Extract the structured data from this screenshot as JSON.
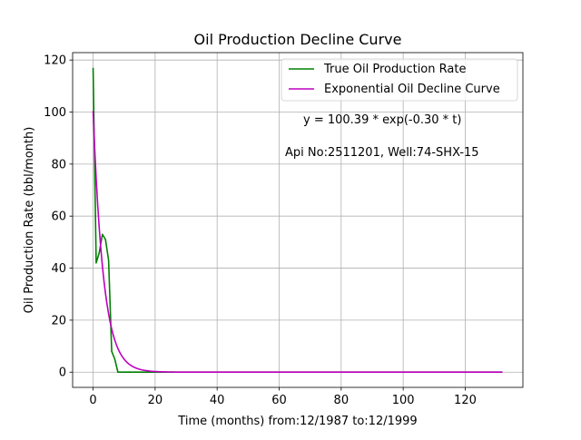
{
  "chart_data": {
    "type": "line",
    "title": "Oil Production Decline Curve",
    "xlabel": "Time (months) from:12/1987 to:12/1999",
    "ylabel": "Oil Production Rate (bbl/month)",
    "xlim": [
      -6.6,
      138.6
    ],
    "ylim": [
      -5.85,
      122.85
    ],
    "xticks": [
      0,
      20,
      40,
      60,
      80,
      100,
      120
    ],
    "yticks": [
      0,
      20,
      40,
      60,
      80,
      100,
      120
    ],
    "grid": true,
    "legend_position": "top-right",
    "annotations": [
      {
        "text": "y = 100.39 * exp(-0.30 * t)",
        "x": 69,
        "y": 95
      },
      {
        "text": "Api No:2511201, Well:74-SHX-15",
        "x": 62.5,
        "y": 82
      }
    ],
    "series": [
      {
        "name": "True Oil Production Rate",
        "color": "#008000",
        "style": "points",
        "x": [
          0,
          1,
          2,
          3,
          4,
          5,
          6,
          7,
          8,
          9,
          10,
          12,
          15,
          20,
          30,
          40,
          60,
          80,
          100,
          120,
          132
        ],
        "y": [
          117,
          42,
          46,
          53,
          51,
          43,
          8,
          5,
          0,
          0,
          0,
          0,
          0,
          0,
          0,
          0,
          0,
          0,
          0,
          0,
          0
        ]
      },
      {
        "name": "Exponential Oil Decline Curve",
        "color": "#bf00bf",
        "style": "function",
        "function": {
          "a": 100.39,
          "b": -0.3,
          "x_start": 0,
          "x_end": 132
        }
      }
    ]
  }
}
